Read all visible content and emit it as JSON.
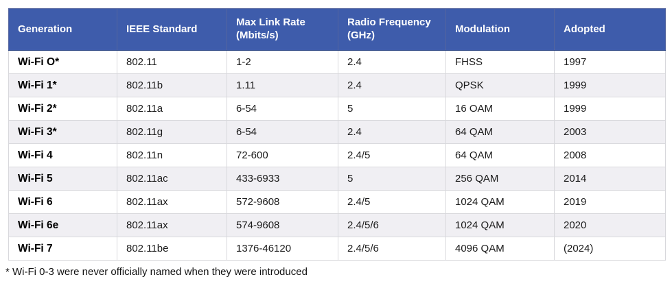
{
  "chart_data": {
    "type": "table",
    "title": "",
    "columns": [
      "Generation",
      "IEEE Standard",
      "Max Link Rate (Mbits/s)",
      "Radio Frequency (GHz)",
      "Modulation",
      "Adopted"
    ],
    "rows": [
      [
        "Wi-Fi O*",
        "802.11",
        "1-2",
        "2.4",
        "FHSS",
        "1997"
      ],
      [
        "Wi-Fi 1*",
        "802.11b",
        "1.11",
        "2.4",
        "QPSK",
        "1999"
      ],
      [
        "Wi-Fi 2*",
        "802.11a",
        "6-54",
        "5",
        "16 OAM",
        "1999"
      ],
      [
        "Wi-Fi 3*",
        "802.11g",
        "6-54",
        "2.4",
        "64 QAM",
        "2003"
      ],
      [
        "Wi-Fi 4",
        "802.11n",
        "72-600",
        "2.4/5",
        "64 QAM",
        "2008"
      ],
      [
        "Wi-Fi 5",
        "802.11ac",
        "433-6933",
        "5",
        "256 QAM",
        "2014"
      ],
      [
        "Wi-Fi 6",
        "802.11ax",
        "572-9608",
        "2.4/5",
        "1024 QAM",
        "2019"
      ],
      [
        "Wi-Fi 6e",
        "802.11ax",
        "574-9608",
        "2.4/5/6",
        "1024 QAM",
        "2020"
      ],
      [
        "Wi-Fi 7",
        "802.11be",
        "1376-46120",
        "2.4/5/6",
        "4096 QAM",
        "(2024)"
      ]
    ],
    "footnote": "* Wi-Fi 0-3 were never officially named when they were introduced",
    "layout_hints": {
      "legend": "none",
      "grid": "cell-borders",
      "header_position": "top",
      "row_striping": "alternate starting white"
    },
    "colors": {
      "header_bg": "#3e5cab",
      "header_text": "#ffffff",
      "stripe_row_bg": "#f0eff3",
      "body_row_bg": "#ffffff",
      "cell_border": "#d8d8dc",
      "body_text": "#1a1a1a"
    }
  }
}
